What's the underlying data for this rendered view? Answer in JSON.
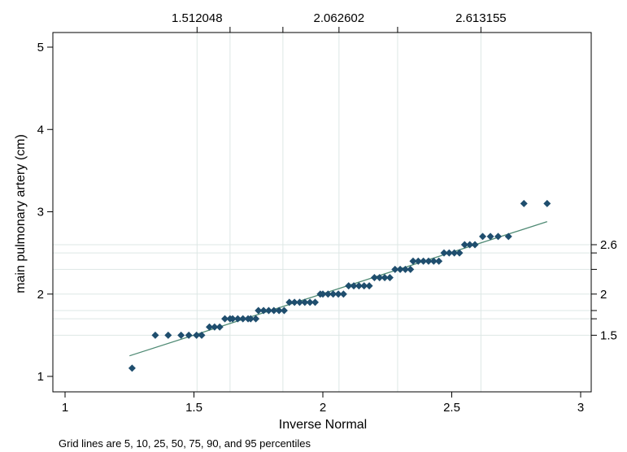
{
  "chart_data": {
    "type": "scatter",
    "title": "",
    "xlabel": "Inverse Normal",
    "ylabel": "main pulmonary artery (cm)",
    "note": "Grid lines are 5, 10, 25, 50, 75, 90, and 95 percentiles",
    "xlim": [
      1,
      3
    ],
    "ylim": [
      1,
      5
    ],
    "x_ticks": [
      "1",
      "1.5",
      "2",
      "2.5",
      "3"
    ],
    "y_ticks": [
      "1",
      "2",
      "3",
      "4",
      "5"
    ],
    "top_axis": {
      "ticks": [
        {
          "value": 1.512048,
          "label": "1.512048"
        },
        {
          "value": 2.062602,
          "label": "2.062602"
        },
        {
          "value": 2.613155,
          "label": "2.613155"
        }
      ],
      "unlabeled": [
        1.64,
        1.845,
        2.29
      ]
    },
    "right_axis": {
      "ticks": [
        {
          "value": 1.5,
          "label": "1.5"
        },
        {
          "value": 2.0,
          "label": "2"
        },
        {
          "value": 2.6,
          "label": "2.6"
        }
      ],
      "unlabeled": [
        1.7,
        1.8,
        2.3,
        2.5
      ]
    },
    "vertical_gridlines": [
      1.512048,
      1.64,
      1.845,
      2.062602,
      2.29,
      2.613155
    ],
    "horizontal_gridlines": [
      1.5,
      1.7,
      1.8,
      2.0,
      2.3,
      2.5,
      2.6
    ],
    "colors": {
      "points": "#1f4e6e",
      "fit_line": "#4f8a74",
      "grid": "#dde7e5",
      "axis": "#000000"
    },
    "fit_line": {
      "x": [
        1.25,
        2.87
      ],
      "y": [
        1.25,
        2.88
      ]
    },
    "series": [
      {
        "x": [
          1.26,
          1.35,
          1.4,
          1.45,
          1.48,
          1.51,
          1.53,
          1.56,
          1.58,
          1.6,
          1.62,
          1.64,
          1.65,
          1.67,
          1.69,
          1.71,
          1.72,
          1.74,
          1.75,
          1.77,
          1.79,
          1.81,
          1.83,
          1.85,
          1.87,
          1.89,
          1.91,
          1.93,
          1.95,
          1.97,
          1.99,
          2.0,
          2.02,
          2.04,
          2.06,
          2.08,
          2.1,
          2.12,
          2.14,
          2.16,
          2.18,
          2.2,
          2.22,
          2.24,
          2.26,
          2.28,
          2.3,
          2.32,
          2.34,
          2.35,
          2.37,
          2.39,
          2.41,
          2.43,
          2.45,
          2.47,
          2.49,
          2.51,
          2.53,
          2.55,
          2.57,
          2.59,
          2.62,
          2.65,
          2.68,
          2.72,
          2.78,
          2.87
        ],
        "y": [
          1.1,
          1.5,
          1.5,
          1.5,
          1.5,
          1.5,
          1.5,
          1.6,
          1.6,
          1.6,
          1.7,
          1.7,
          1.7,
          1.7,
          1.7,
          1.7,
          1.7,
          1.7,
          1.8,
          1.8,
          1.8,
          1.8,
          1.8,
          1.8,
          1.9,
          1.9,
          1.9,
          1.9,
          1.9,
          1.9,
          2.0,
          2.0,
          2.0,
          2.0,
          2.0,
          2.0,
          2.1,
          2.1,
          2.1,
          2.1,
          2.1,
          2.2,
          2.2,
          2.2,
          2.2,
          2.3,
          2.3,
          2.3,
          2.3,
          2.4,
          2.4,
          2.4,
          2.4,
          2.4,
          2.4,
          2.5,
          2.5,
          2.5,
          2.5,
          2.6,
          2.6,
          2.6,
          2.7,
          2.7,
          2.7,
          2.7,
          3.1,
          3.1
        ]
      }
    ]
  }
}
